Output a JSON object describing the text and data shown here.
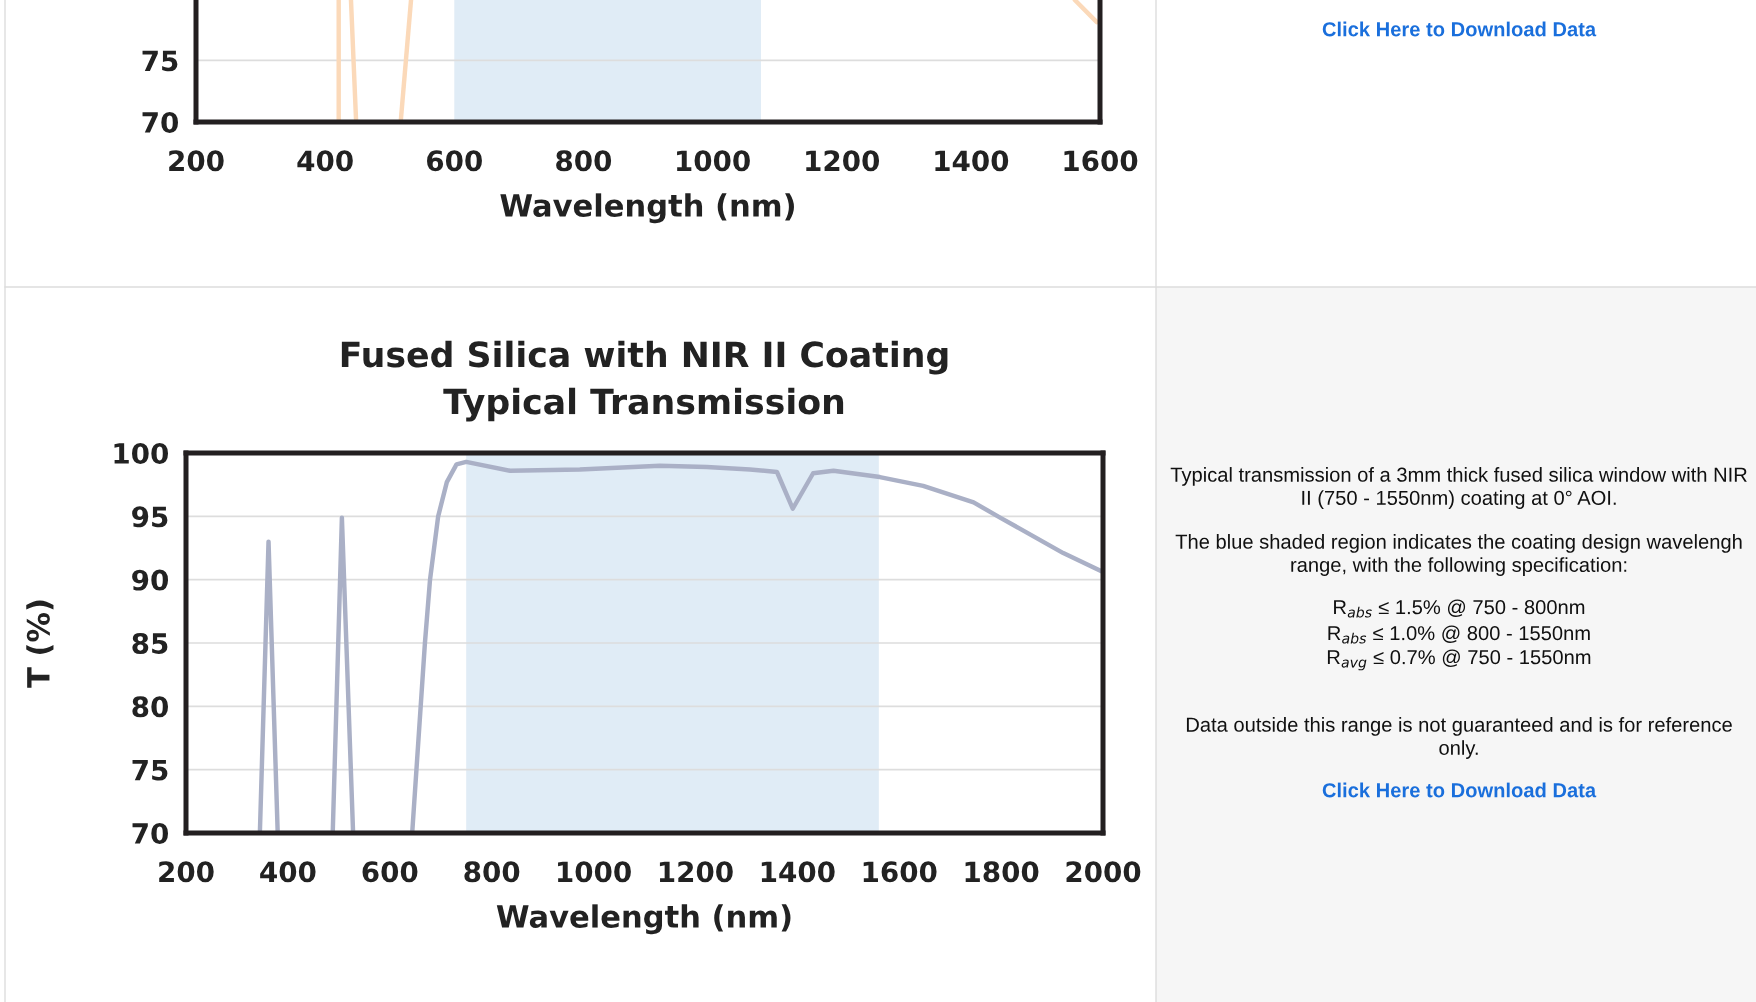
{
  "chart_data": [
    {
      "type": "line",
      "xlabel": "Wavelength (nm)",
      "xlim": [
        200,
        1600
      ],
      "xticks": [
        200,
        400,
        600,
        800,
        1000,
        1200,
        1400,
        1600
      ],
      "ylim": [
        70,
        79.9
      ],
      "yticks": [
        70,
        75
      ],
      "grid": "y",
      "bands": [
        {
          "axis": "x",
          "from": 600,
          "to": 1075,
          "color": "#e0ecf6"
        }
      ],
      "series": [
        {
          "color": "#fbd9b9",
          "x": [
            421,
            421
          ],
          "values": [
            70,
            79.9
          ]
        },
        {
          "color": "#fbd9b9",
          "x": [
            440,
            448
          ],
          "values": [
            79.9,
            70
          ]
        },
        {
          "color": "#fbd9b9",
          "x": [
            517,
            533
          ],
          "values": [
            70,
            79.9
          ]
        },
        {
          "color": "#fbd9b9",
          "x": [
            1561,
            1595
          ],
          "values": [
            79.9,
            78.1
          ]
        }
      ],
      "annotations": [
        "Click Here to Download Data"
      ]
    },
    {
      "type": "line",
      "title": "Fused Silica with NIR II Coating\nTypical Transmission",
      "xlabel": "Wavelength (nm)",
      "ylabel": "T (%)",
      "xlim": [
        200,
        2000
      ],
      "xticks": [
        200,
        400,
        600,
        800,
        1000,
        1200,
        1400,
        1600,
        1800,
        2000
      ],
      "ylim": [
        70,
        100
      ],
      "yticks": [
        70,
        75,
        80,
        85,
        90,
        95,
        100
      ],
      "grid": "y",
      "bands": [
        {
          "axis": "x",
          "from": 750,
          "to": 1560,
          "color": "#e0ecf6"
        }
      ],
      "series": [
        {
          "color": "#aab0c6",
          "x": [
            345,
            362,
            380,
            488,
            506,
            528,
            644,
            669,
            679,
            695,
            712,
            731,
            750,
            836,
            973,
            1130,
            1222,
            1307,
            1360,
            1391,
            1431,
            1471,
            1562,
            1647,
            1746,
            1798,
            1922,
            2000
          ],
          "values": [
            70,
            93.0,
            70,
            70,
            94.9,
            70,
            70,
            85,
            90,
            95,
            97.7,
            99.1,
            99.3,
            98.6,
            98.7,
            99.0,
            98.9,
            98.7,
            98.5,
            95.6,
            98.4,
            98.6,
            98.1,
            97.4,
            96.1,
            94.9,
            92.1,
            90.6
          ]
        }
      ],
      "annotations": [
        "Typical transmission of a 3mm thick fused silica window with NIR II (750 - 1550nm) coating at 0° AOI.",
        "The blue shaded region indicates the coating design wavelengh range, with the following specification:",
        "R$_{abs}$ ≤ 1.5% @ 750 - 800nm",
        "R$_{abs}$ ≤ 1.0% @ 800 - 1550nm",
        "R$_{avg}$ ≤ 0.7% @ 750 - 1550nm",
        "Data outside this range is not guaranteed and is for reference only.",
        "Click Here to Download Data"
      ]
    }
  ]
}
